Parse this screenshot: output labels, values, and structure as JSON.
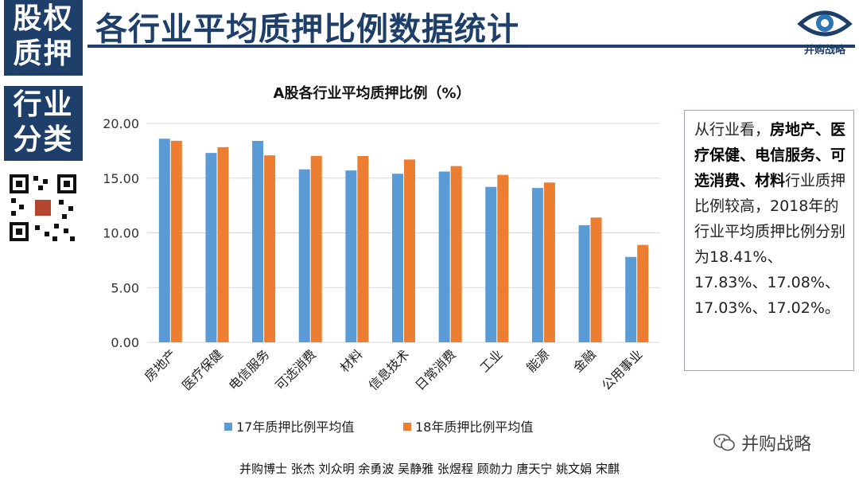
{
  "side_labels": {
    "block1": [
      "股权",
      "质押"
    ],
    "block2": [
      "行业",
      "分类"
    ]
  },
  "title": "各行业平均质押比例数据统计",
  "logo": {
    "text": "并购战略",
    "icon": "eye-logo-icon"
  },
  "note": {
    "line1_plain": "从行业看，",
    "line1_bold": "房地产、医疗保健、电信服务、可选消费、材料",
    "rest": "行业质押比例较高，2018年的行业平均质押比例分别为18.41%、17.83%、17.08%、17.03%、17.02%。"
  },
  "watermark": {
    "text": "并购战略",
    "icon": "wechat-icon"
  },
  "footer": "并购博士 张杰 刘众明 余勇波 吴静雅 张煜程  顾勍力 唐天宁 姚文娟 宋麒",
  "chart_data": {
    "type": "bar",
    "title": "A股各行业平均质押比例（%）",
    "categories": [
      "房地产",
      "医疗保健",
      "电信服务",
      "可选消费",
      "材料",
      "信息技术",
      "日常消费",
      "工业",
      "能源",
      "金融",
      "公用事业"
    ],
    "series": [
      {
        "name": "17年质押比例平均值",
        "color": "#5b9bd5",
        "values": [
          18.6,
          17.3,
          18.4,
          15.8,
          15.7,
          15.4,
          15.6,
          14.2,
          14.1,
          10.7,
          7.8
        ]
      },
      {
        "name": "18年质押比例平均值",
        "color": "#ed7d31",
        "values": [
          18.41,
          17.83,
          17.08,
          17.03,
          17.02,
          16.7,
          16.1,
          15.3,
          14.6,
          11.4,
          8.9
        ]
      }
    ],
    "yticks": [
      "0.00",
      "5.00",
      "10.00",
      "15.00",
      "20.00"
    ],
    "ylim": [
      0,
      20
    ],
    "grid": true,
    "legend": "bottom"
  }
}
